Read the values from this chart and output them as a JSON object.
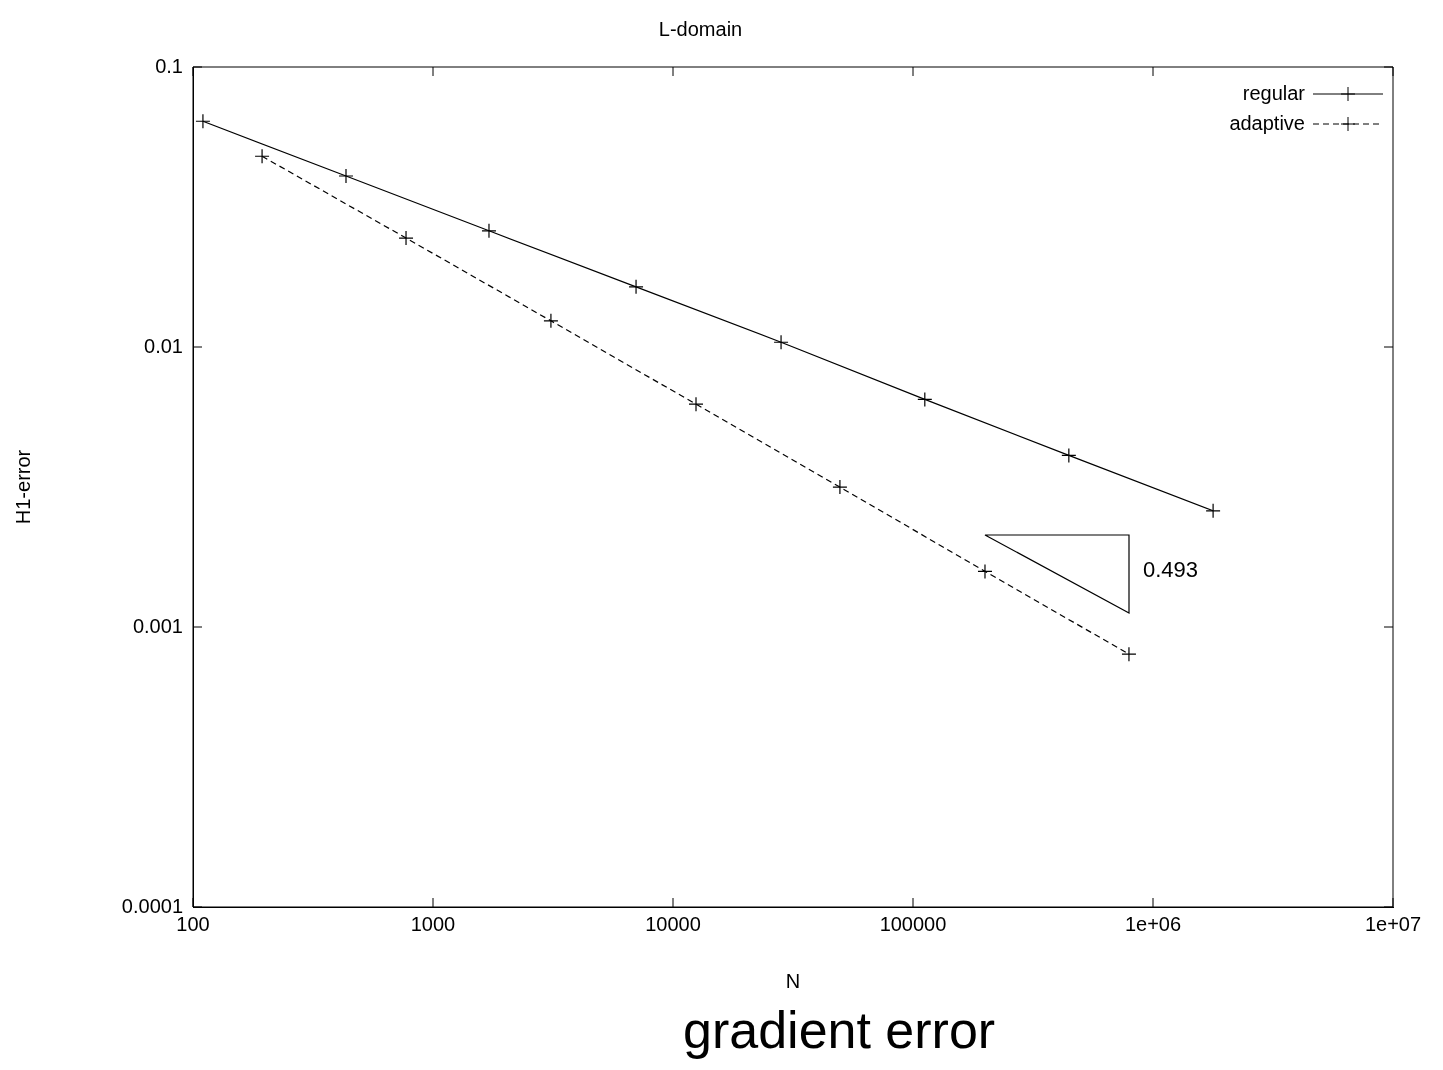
{
  "chart_data": {
    "type": "line",
    "title": "L-domain",
    "xlabel": "N",
    "ylabel": "H1-error",
    "log": "xy",
    "xlim": [
      100,
      10000000
    ],
    "xticks": [
      {
        "value": 100,
        "label": "100"
      },
      {
        "value": 1000,
        "label": "1000"
      },
      {
        "value": 10000,
        "label": "10000"
      },
      {
        "value": 100000,
        "label": "100000"
      },
      {
        "value": 1000000,
        "label": "1e+06"
      },
      {
        "value": 10000000,
        "label": "1e+07"
      }
    ],
    "ylim": [
      0.0001,
      0.1
    ],
    "yticks": [
      0.0001,
      0.001,
      0.01,
      0.1
    ],
    "grid": false,
    "legend": "top right",
    "annotations": [
      "0.493",
      "gradient error"
    ],
    "series": [
      {
        "name": "regular",
        "color": "#000000",
        "marker": "cross",
        "line_style": "solid",
        "x": [
          110,
          434,
          1711,
          7015,
          28200,
          112000,
          446000,
          1780000
        ],
        "values": [
          0.064,
          0.0408,
          0.026,
          0.0164,
          0.0104,
          0.0065,
          0.0041,
          0.0026
        ]
      },
      {
        "name": "adaptive",
        "color": "#000000",
        "marker": "cross",
        "line_style": "dashed",
        "x": [
          194,
          772,
          3100,
          12470,
          49600,
          199500,
          794000
        ],
        "values": [
          0.048,
          0.0245,
          0.0124,
          0.00625,
          0.00316,
          0.00158,
          0.0008
        ]
      }
    ]
  }
}
